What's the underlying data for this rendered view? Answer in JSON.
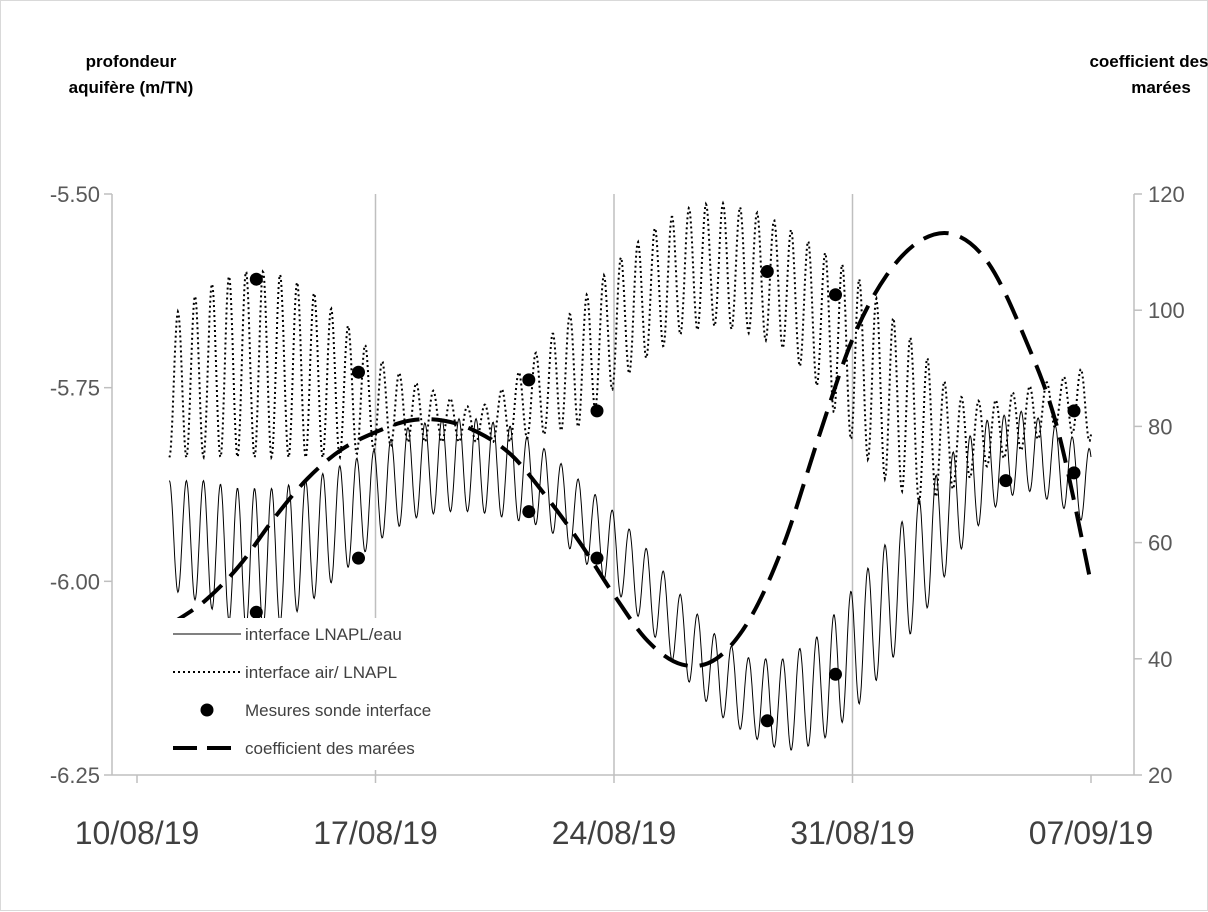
{
  "chart_data": {
    "type": "line",
    "y_left_label_lines": [
      "profondeur",
      "aquifère (m/TN)"
    ],
    "y_right_label_lines": [
      "coefficient des",
      "marées"
    ],
    "y_left_range": [
      -6.25,
      -5.5
    ],
    "y_left_ticks": [
      "-5.50",
      "-5.75",
      "-6.00",
      "-6.25"
    ],
    "y_right_range": [
      20,
      120
    ],
    "y_right_ticks": [
      "120",
      "100",
      "80",
      "60",
      "40",
      "20"
    ],
    "x_range": [
      "2019-08-10",
      "2019-09-07"
    ],
    "x_ticks": [
      "10/08/19",
      "17/08/19",
      "24/08/19",
      "31/08/19",
      "07/09/19"
    ],
    "grid": "vertical",
    "legend_position": "bottom-left",
    "series": [
      {
        "name": "interface LNAPL/eau",
        "style": "solid-thin",
        "axis": "left",
        "color": "#000000",
        "x": [
          "2019-08-11",
          "2019-08-12",
          "2019-08-13",
          "2019-08-14",
          "2019-08-15",
          "2019-08-16",
          "2019-08-17",
          "2019-08-18",
          "2019-08-19",
          "2019-08-20",
          "2019-08-21",
          "2019-08-22",
          "2019-08-23",
          "2019-08-24",
          "2019-08-25",
          "2019-08-26",
          "2019-08-27",
          "2019-08-28",
          "2019-08-29",
          "2019-08-30",
          "2019-08-31",
          "2019-09-01",
          "2019-09-02",
          "2019-09-03",
          "2019-09-04",
          "2019-09-05",
          "2019-09-06",
          "2019-09-07"
        ],
        "y_mid": [
          -5.94,
          -5.95,
          -5.97,
          -5.97,
          -5.95,
          -5.92,
          -5.89,
          -5.86,
          -5.85,
          -5.85,
          -5.86,
          -5.88,
          -5.92,
          -5.96,
          -6.01,
          -6.07,
          -6.12,
          -6.15,
          -6.16,
          -6.14,
          -6.09,
          -6.03,
          -5.97,
          -5.9,
          -5.85,
          -5.83,
          -5.85,
          -5.88
        ],
        "y_amp": [
          0.07,
          0.08,
          0.09,
          0.09,
          0.08,
          0.07,
          0.06,
          0.06,
          0.06,
          0.06,
          0.06,
          0.05,
          0.05,
          0.05,
          0.05,
          0.05,
          0.05,
          0.05,
          0.06,
          0.07,
          0.08,
          0.08,
          0.08,
          0.07,
          0.06,
          0.05,
          0.05,
          0.05
        ],
        "cycles_per_day": 2
      },
      {
        "name": "interface air/ LNAPL",
        "style": "dotted",
        "axis": "left",
        "color": "#000000",
        "x": [
          "2019-08-11",
          "2019-08-12",
          "2019-08-13",
          "2019-08-14",
          "2019-08-15",
          "2019-08-16",
          "2019-08-17",
          "2019-08-18",
          "2019-08-19",
          "2019-08-20",
          "2019-08-21",
          "2019-08-22",
          "2019-08-23",
          "2019-08-24",
          "2019-08-25",
          "2019-08-26",
          "2019-08-27",
          "2019-08-28",
          "2019-08-29",
          "2019-08-30",
          "2019-08-31",
          "2019-09-01",
          "2019-09-02",
          "2019-09-03",
          "2019-09-04",
          "2019-09-05",
          "2019-09-06",
          "2019-09-07"
        ],
        "y_mid": [
          -5.75,
          -5.73,
          -5.72,
          -5.72,
          -5.73,
          -5.75,
          -5.77,
          -5.78,
          -5.79,
          -5.8,
          -5.78,
          -5.75,
          -5.72,
          -5.67,
          -5.63,
          -5.6,
          -5.59,
          -5.6,
          -5.62,
          -5.66,
          -5.71,
          -5.76,
          -5.8,
          -5.82,
          -5.81,
          -5.79,
          -5.77,
          -5.77
        ],
        "y_amp": [
          0.09,
          0.11,
          0.12,
          0.12,
          0.11,
          0.09,
          0.06,
          0.04,
          0.03,
          0.02,
          0.04,
          0.06,
          0.08,
          0.08,
          0.08,
          0.08,
          0.08,
          0.08,
          0.08,
          0.09,
          0.11,
          0.11,
          0.1,
          0.06,
          0.04,
          0.04,
          0.03,
          0.05
        ],
        "cycles_per_day": 2
      },
      {
        "name": "Mesures sonde interface",
        "style": "markers",
        "axis": "left",
        "color": "#000000",
        "points": [
          {
            "x": "2019-08-13 12:00",
            "y": -5.61
          },
          {
            "x": "2019-08-13 12:00",
            "y": -6.04
          },
          {
            "x": "2019-08-16 12:00",
            "y": -5.73
          },
          {
            "x": "2019-08-16 12:00",
            "y": -5.97
          },
          {
            "x": "2019-08-21 12:00",
            "y": -5.74
          },
          {
            "x": "2019-08-21 12:00",
            "y": -5.91
          },
          {
            "x": "2019-08-23 12:00",
            "y": -5.78
          },
          {
            "x": "2019-08-23 12:00",
            "y": -5.97
          },
          {
            "x": "2019-08-28 12:00",
            "y": -5.6
          },
          {
            "x": "2019-08-28 12:00",
            "y": -6.18
          },
          {
            "x": "2019-08-30 12:00",
            "y": -5.63
          },
          {
            "x": "2019-08-30 12:00",
            "y": -6.12
          },
          {
            "x": "2019-09-04 12:00",
            "y": -5.87
          },
          {
            "x": "2019-09-06 12:00",
            "y": -5.78
          },
          {
            "x": "2019-09-06 12:00",
            "y": -5.86
          }
        ]
      },
      {
        "name": "coefficient des marées",
        "style": "dashed-thick",
        "axis": "right",
        "color": "#000000",
        "x": [
          "2019-08-11",
          "2019-08-12",
          "2019-08-13",
          "2019-08-14",
          "2019-08-15",
          "2019-08-16",
          "2019-08-17",
          "2019-08-18",
          "2019-08-19",
          "2019-08-20",
          "2019-08-21",
          "2019-08-22",
          "2019-08-23",
          "2019-08-24",
          "2019-08-25",
          "2019-08-26",
          "2019-08-27",
          "2019-08-28",
          "2019-08-29",
          "2019-08-30",
          "2019-08-31",
          "2019-09-01",
          "2019-09-02",
          "2019-09-03",
          "2019-09-04",
          "2019-09-05",
          "2019-09-06",
          "2019-09-07"
        ],
        "values": [
          46,
          50,
          56,
          64,
          71,
          76,
          79,
          81,
          81,
          79,
          75,
          68,
          60,
          51,
          43,
          39,
          40,
          47,
          60,
          78,
          95,
          106,
          112,
          113,
          108,
          96,
          80,
          53
        ]
      }
    ]
  }
}
